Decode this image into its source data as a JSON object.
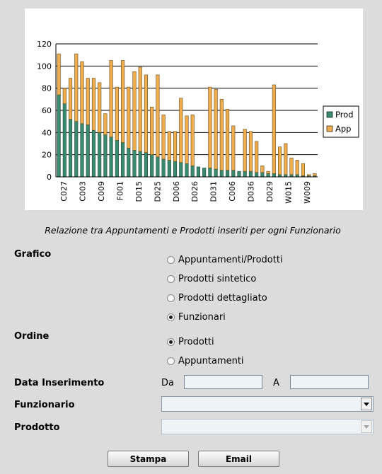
{
  "chart_data": {
    "type": "bar",
    "stacked": true,
    "ylim": [
      0,
      120
    ],
    "yticks": [
      0,
      20,
      40,
      60,
      80,
      100,
      120
    ],
    "grid": true,
    "legend": "right",
    "tick_labels": [
      "C027",
      "C003",
      "C009",
      "F001",
      "D015",
      "D025",
      "D006",
      "D026",
      "D031",
      "C006",
      "D036",
      "D029",
      "W015",
      "W009"
    ],
    "series": [
      {
        "name": "Prod",
        "color": "#3a8a6e",
        "values": [
          74,
          66,
          52,
          50,
          48,
          47,
          42,
          40,
          38,
          36,
          33,
          31,
          26,
          24,
          23,
          22,
          20,
          18,
          16,
          15,
          14,
          13,
          12,
          10,
          9,
          8,
          8,
          7,
          6,
          6,
          6,
          5,
          5,
          5,
          4,
          4,
          3,
          3,
          2,
          2,
          2,
          2,
          1,
          1,
          1
        ]
      },
      {
        "name": "App",
        "color": "#f0ad4e",
        "values": [
          37,
          14,
          37,
          61,
          56,
          42,
          47,
          45,
          19,
          69,
          48,
          74,
          55,
          71,
          76,
          70,
          43,
          74,
          40,
          26,
          27,
          58,
          43,
          46,
          0,
          0,
          73,
          72,
          64,
          55,
          40,
          0,
          38,
          36,
          28,
          6,
          2,
          80,
          25,
          28,
          15,
          13,
          11,
          1,
          2
        ]
      }
    ]
  },
  "caption": "Relazione tra Appuntamenti e Prodotti inseriti per ogni Funzionario",
  "grafico": {
    "label": "Grafico",
    "options": [
      {
        "label": "Appuntamenti/Prodotti",
        "checked": false
      },
      {
        "label": "Prodotti sintetico",
        "checked": false
      },
      {
        "label": "Prodotti dettagliato",
        "checked": false
      },
      {
        "label": "Funzionari",
        "checked": true
      }
    ]
  },
  "ordine": {
    "label": "Ordine",
    "options": [
      {
        "label": "Prodotti",
        "checked": true
      },
      {
        "label": "Appuntamenti",
        "checked": false
      }
    ]
  },
  "data_inserimento": {
    "label": "Data Inserimento",
    "da_label": "Da",
    "a_label": "A",
    "da_value": "",
    "a_value": ""
  },
  "funzionario": {
    "label": "Funzionario",
    "value": ""
  },
  "prodotto": {
    "label": "Prodotto",
    "value": ""
  },
  "buttons": {
    "stampa": "Stampa",
    "email": "Email"
  }
}
